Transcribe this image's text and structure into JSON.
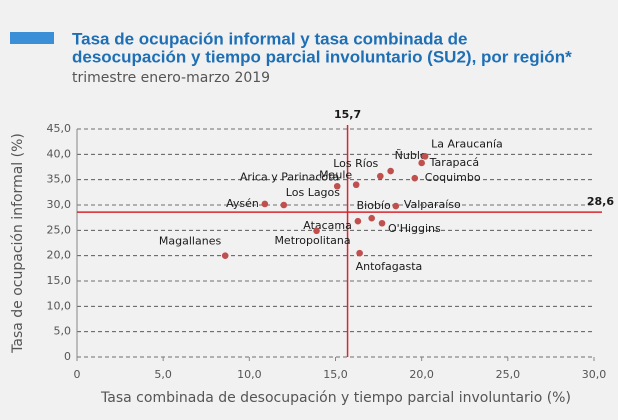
{
  "chart_data": {
    "type": "scatter",
    "title": [
      "Tasa de ocupación informal y tasa combinada de",
      "desocupación y tiempo parcial involuntario (SU2), por región*"
    ],
    "subtitle": "trimestre enero-marzo 2019",
    "xlabel": "Tasa combinada de desocupación y tiempo parcial involuntario (%)",
    "ylabel": "Tasa de ocupación informal (%)",
    "labels": [
      "Magallanes",
      "Aysén",
      "Los Lagos",
      "Arica y Parinacota",
      "Maule",
      "Los Ríos",
      "Ñuble",
      "La Araucanía",
      "Tarapacá",
      "Coquimbo",
      "Valparaíso",
      "Biobío",
      "Atacama",
      "O'Higgins",
      "Metropolitana",
      "Antofagasta"
    ],
    "x": [
      8.6,
      10.9,
      12.0,
      15.1,
      16.2,
      17.6,
      18.2,
      20.2,
      20.0,
      19.6,
      18.5,
      17.1,
      16.3,
      17.7,
      13.9,
      16.4
    ],
    "y": [
      20.0,
      30.2,
      30.0,
      33.7,
      34.0,
      35.7,
      36.7,
      39.6,
      38.3,
      35.3,
      29.8,
      27.4,
      26.8,
      26.4,
      24.9,
      20.5
    ],
    "color": "#c0504d",
    "xlim": [
      0,
      30
    ],
    "ylim": [
      0,
      45
    ],
    "xticks": [
      0,
      {
        "value": 5,
        "label": "5,0"
      },
      {
        "value": 10,
        "label": "10,0"
      },
      {
        "value": 15,
        "label": "15,0"
      },
      {
        "value": 20,
        "label": "20,0"
      },
      {
        "value": 25,
        "label": "25,0"
      },
      {
        "value": 30,
        "label": "30,0"
      }
    ],
    "yticks": [
      0,
      {
        "value": 5,
        "label": "5,0"
      },
      {
        "value": 10,
        "label": "10,0"
      },
      {
        "value": 15,
        "label": "15,0"
      },
      {
        "value": 20,
        "label": "20,0"
      },
      {
        "value": 25,
        "label": "25,0"
      },
      {
        "value": 30,
        "label": "30,0"
      },
      {
        "value": 35,
        "label": "35,0"
      },
      {
        "value": 40,
        "label": "40,0"
      },
      {
        "value": 45,
        "label": "45,0"
      }
    ],
    "grid": true,
    "reference_lines": {
      "x": {
        "value": 15.7,
        "label": "15,7"
      },
      "y": {
        "value": 28.6,
        "label": "28,6"
      }
    },
    "reference_color": "#d9262e"
  }
}
